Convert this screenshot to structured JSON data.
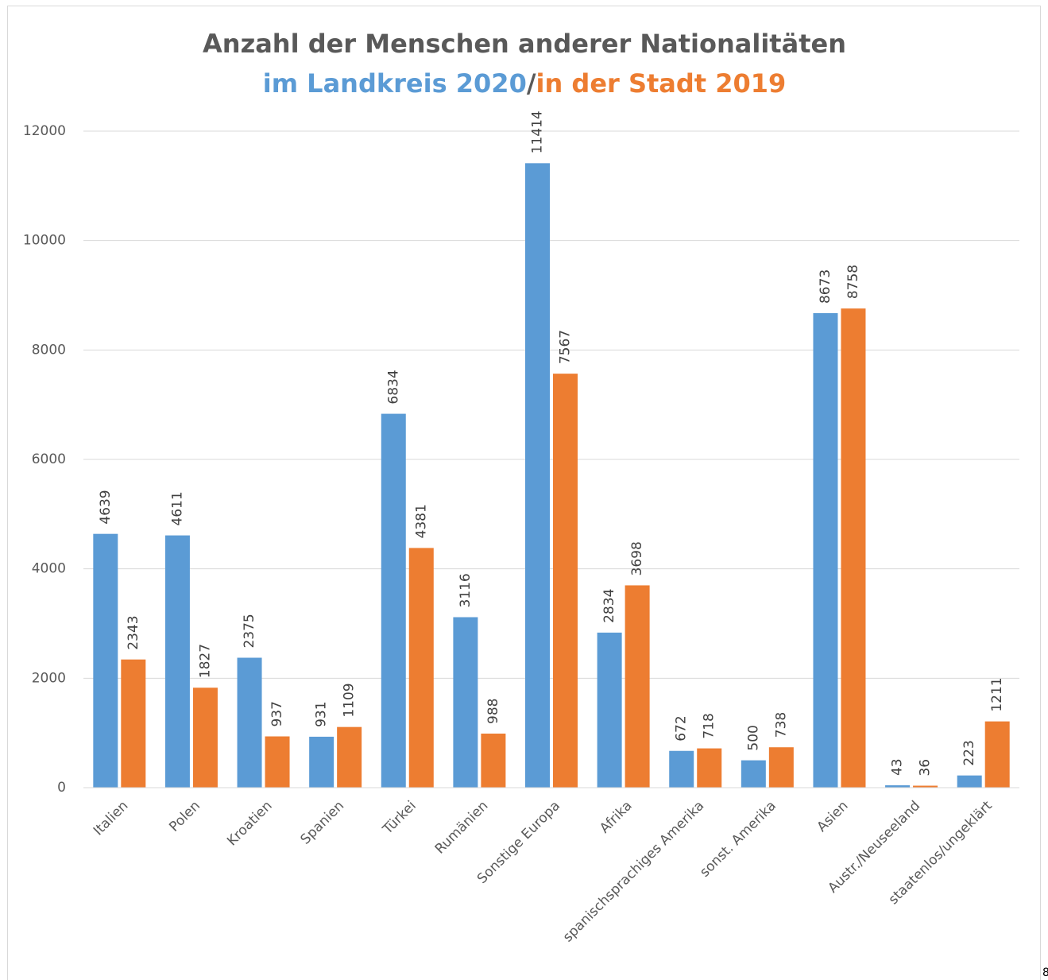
{
  "chart_data": {
    "type": "bar",
    "title": "Anzahl der Menschen anderer Nationalitäten",
    "subtitle_separator": "/",
    "categories": [
      "Italien",
      "Polen",
      "Kroatien",
      "Spanien",
      "Türkei",
      "Rumänien",
      "Sonstige Europa",
      "Afrika",
      "spanischsprachiges Amerika",
      "sonst. Amerika",
      "Asien",
      "Austr./Neuseeland",
      "staatenlos/ungeklärt"
    ],
    "series": [
      {
        "name": "im Landkreis 2020",
        "color": "#5b9bd5",
        "values": [
          4639,
          4611,
          2375,
          931,
          6834,
          3116,
          11414,
          2834,
          672,
          500,
          8673,
          43,
          223
        ]
      },
      {
        "name": "in der Stadt 2019",
        "color": "#ed7d31",
        "values": [
          2343,
          1827,
          937,
          1109,
          4381,
          988,
          7567,
          3698,
          718,
          738,
          8758,
          36,
          1211
        ]
      }
    ],
    "ylim": [
      0,
      12000
    ],
    "yticks": [
      0,
      2000,
      4000,
      6000,
      8000,
      10000,
      12000
    ],
    "grid": true,
    "footer_text": "8"
  }
}
